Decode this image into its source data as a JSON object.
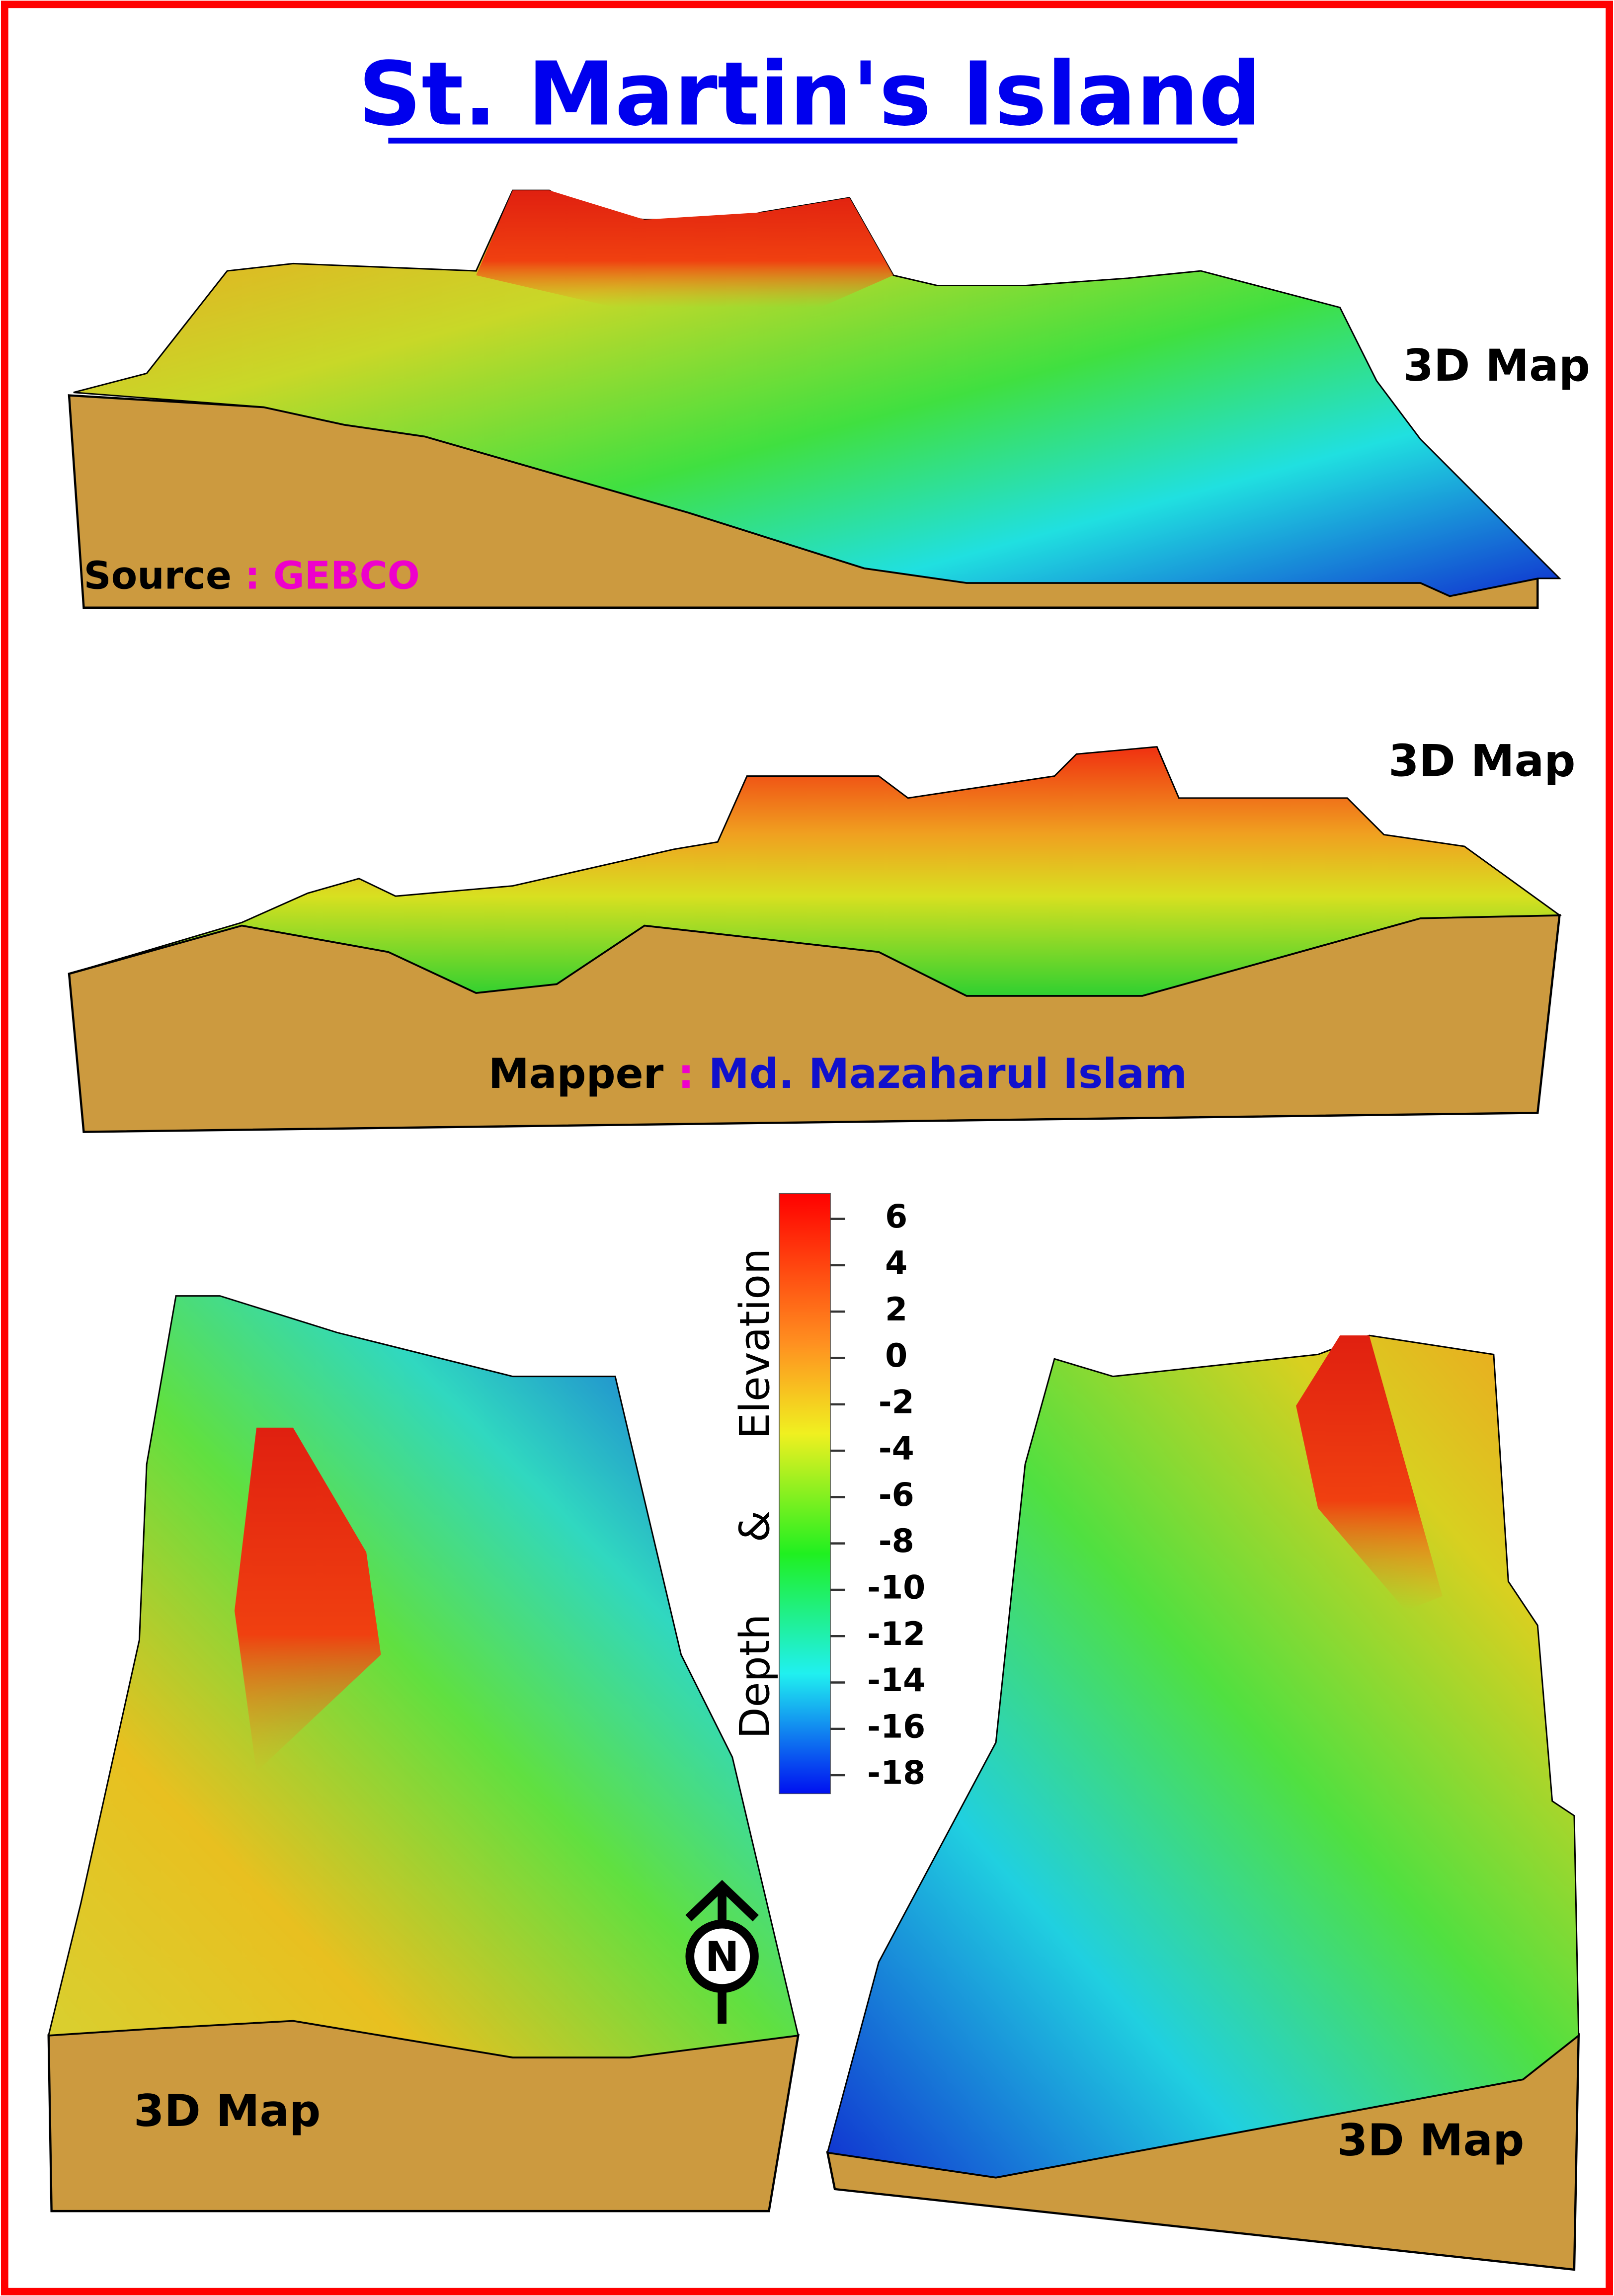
{
  "title": "St. Martin's Island",
  "maps": [
    {
      "label": "3D Map"
    },
    {
      "label": "3D Map"
    },
    {
      "label": "3D Map"
    },
    {
      "label": "3D Map"
    }
  ],
  "source": {
    "label": "Source",
    "separator": ":",
    "value": "GEBCO"
  },
  "mapper": {
    "label": "Mapper",
    "separator": ":",
    "value": "Md. Mazaharul Islam"
  },
  "north_arrow": "N",
  "legend": {
    "title": "Depth & Elevation",
    "lim": [
      -18.8,
      7.1
    ],
    "ticks": [
      6,
      4,
      2,
      0,
      -2,
      -4,
      -6,
      -8,
      -10,
      -12,
      -14,
      -16,
      -18
    ]
  }
}
